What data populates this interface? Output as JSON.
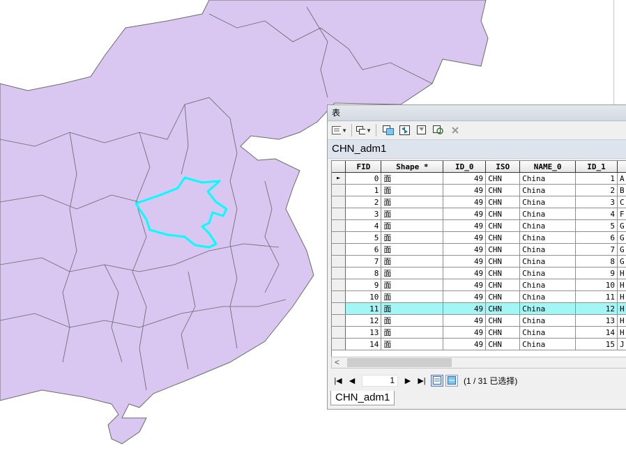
{
  "window": {
    "title": "表"
  },
  "layer_name": "CHN_adm1",
  "bottom_tab": "CHN_adm1",
  "table": {
    "columns": [
      "FID",
      "Shape *",
      "ID_0",
      "ISO",
      "NAME_0",
      "ID_1",
      ""
    ],
    "rows": [
      [
        "0",
        "面",
        "49",
        "CHN",
        "China",
        "1",
        "A"
      ],
      [
        "1",
        "面",
        "49",
        "CHN",
        "China",
        "2",
        "B"
      ],
      [
        "2",
        "面",
        "49",
        "CHN",
        "China",
        "3",
        "C"
      ],
      [
        "3",
        "面",
        "49",
        "CHN",
        "China",
        "4",
        "F"
      ],
      [
        "4",
        "面",
        "49",
        "CHN",
        "China",
        "5",
        "G"
      ],
      [
        "5",
        "面",
        "49",
        "CHN",
        "China",
        "6",
        "G"
      ],
      [
        "6",
        "面",
        "49",
        "CHN",
        "China",
        "7",
        "G"
      ],
      [
        "7",
        "面",
        "49",
        "CHN",
        "China",
        "8",
        "G"
      ],
      [
        "8",
        "面",
        "49",
        "CHN",
        "China",
        "9",
        "H"
      ],
      [
        "9",
        "面",
        "49",
        "CHN",
        "China",
        "10",
        "H"
      ],
      [
        "10",
        "面",
        "49",
        "CHN",
        "China",
        "11",
        "H"
      ],
      [
        "11",
        "面",
        "49",
        "CHN",
        "China",
        "12",
        "H"
      ],
      [
        "12",
        "面",
        "49",
        "CHN",
        "China",
        "13",
        "H"
      ],
      [
        "13",
        "面",
        "49",
        "CHN",
        "China",
        "14",
        "H"
      ],
      [
        "14",
        "面",
        "49",
        "CHN",
        "China",
        "15",
        "J"
      ]
    ],
    "current_row_marker": "►",
    "highlighted_row_index": 11
  },
  "navigation": {
    "current_record": "1",
    "record_count": "(1 / 31 已选择)"
  },
  "toolbar": {
    "icons": [
      "table-options-icon",
      "related-tables-icon",
      "select-by-attributes-icon",
      "switch-selection-icon",
      "clear-selection-icon",
      "zoom-to-selected-icon",
      "delete-selected-icon"
    ]
  },
  "colors": {
    "map_fill": "#d9c6f1",
    "map_stroke": "#6b6b6b",
    "selected_outline": "#00ffff",
    "highlight_row": "#a3f6f6"
  }
}
